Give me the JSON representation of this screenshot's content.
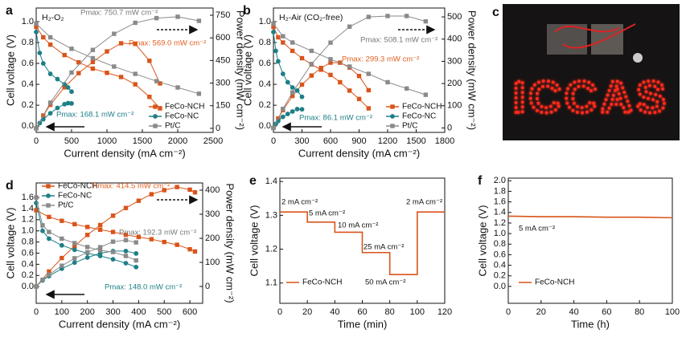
{
  "chart_data": [
    {
      "type": "line",
      "panel_label": "a",
      "title": "H₂-O₂",
      "xlabel": "Current density (mA cm⁻²)",
      "ylabel": "Cell voltage (V)",
      "y2label": "Power density (mW cm⁻²)",
      "xlim": [
        0,
        2500
      ],
      "xticks": [
        0,
        500,
        1000,
        1500,
        2000,
        2500
      ],
      "ylim": [
        -0.06,
        1.13
      ],
      "yticks": [
        {
          "value": 0,
          "label": "0.0"
        },
        0.2,
        0.4,
        0.6,
        0.8,
        {
          "value": 1,
          "label": "1.0"
        }
      ],
      "y2lim": [
        -27,
        798
      ],
      "y2ticks": [
        0,
        150,
        300,
        450,
        600,
        750
      ],
      "legend": "lower right",
      "annotations": [
        {
          "text": "Pmax: 750.7 mW cm⁻²",
          "color": "#777777"
        },
        {
          "text": "Pmax: 569.0 mW cm⁻²",
          "color": "#e0601e"
        },
        {
          "text": "Pmax: 168.1 mW cm⁻²",
          "color": "#1e7f86"
        }
      ],
      "series": [
        {
          "name": "FeCo-NCH",
          "color": "#d9541a",
          "marker": "square",
          "x": [
            0,
            100,
            200,
            400,
            600,
            800,
            1000,
            1200,
            1400,
            1600,
            1750
          ],
          "values": [
            0.95,
            0.85,
            0.78,
            0.68,
            0.61,
            0.55,
            0.51,
            0.47,
            0.4,
            0.28,
            0.17
          ],
          "power": [
            0,
            85,
            156,
            272,
            366,
            440,
            510,
            564,
            560,
            448,
            298
          ]
        },
        {
          "name": "FeCo-NC",
          "color": "#1e7f86",
          "marker": "circle",
          "x": [
            0,
            50,
            100,
            200,
            300,
            400,
            450,
            500
          ],
          "values": [
            0.9,
            0.7,
            0.6,
            0.5,
            0.45,
            0.4,
            0.37,
            0.33
          ],
          "power": [
            0,
            35,
            60,
            100,
            135,
            160,
            167,
            165
          ]
        },
        {
          "name": "Pt/C",
          "color": "#8a8a8a",
          "marker": "square",
          "x": [
            0,
            200,
            500,
            800,
            1100,
            1400,
            1700,
            2000,
            2300
          ],
          "values": [
            0.98,
            0.85,
            0.74,
            0.65,
            0.57,
            0.5,
            0.43,
            0.37,
            0.31
          ],
          "power": [
            0,
            170,
            370,
            520,
            627,
            700,
            731,
            740,
            713
          ]
        }
      ]
    },
    {
      "type": "line",
      "panel_label": "b",
      "title": "H₂-Air (CO₂-free)",
      "xlabel": "Current density (mA cm⁻²)",
      "ylabel": "Cell voltage (V)",
      "y2label": "Power density (mW cm⁻²)",
      "xlim": [
        0,
        1800
      ],
      "xticks": [
        0,
        300,
        600,
        900,
        1200,
        1500,
        1800
      ],
      "ylim": [
        -0.06,
        1.13
      ],
      "yticks": [
        {
          "value": 0,
          "label": "0.0"
        },
        0.2,
        0.4,
        0.6,
        0.8,
        {
          "value": 1,
          "label": "1.0"
        }
      ],
      "y2lim": [
        -20,
        540
      ],
      "y2ticks": [
        0,
        100,
        200,
        300,
        400,
        500
      ],
      "legend": "lower right",
      "annotations": [
        {
          "text": "Pmax: 508.1 mW cm⁻²",
          "color": "#777777"
        },
        {
          "text": "Pmax: 299.3 mW cm⁻²",
          "color": "#e0601e"
        },
        {
          "text": "Pmax: 86.1 mW cm⁻²",
          "color": "#1e7f86"
        }
      ],
      "series": [
        {
          "name": "FeCo-NCH",
          "color": "#d9541a",
          "marker": "square",
          "x": [
            0,
            50,
            100,
            200,
            300,
            400,
            500,
            600,
            700,
            800,
            900,
            1000
          ],
          "values": [
            0.95,
            0.85,
            0.8,
            0.72,
            0.65,
            0.59,
            0.54,
            0.49,
            0.42,
            0.34,
            0.26,
            0.17
          ],
          "power": [
            0,
            43,
            80,
            144,
            195,
            236,
            270,
            294,
            294,
            272,
            234,
            170
          ]
        },
        {
          "name": "FeCo-NC",
          "color": "#1e7f86",
          "marker": "circle",
          "x": [
            0,
            25,
            50,
            100,
            150,
            200,
            250,
            300
          ],
          "values": [
            0.9,
            0.72,
            0.62,
            0.5,
            0.42,
            0.37,
            0.34,
            0.28
          ],
          "power": [
            0,
            18,
            31,
            50,
            63,
            74,
            85,
            84
          ]
        },
        {
          "name": "Pt/C",
          "color": "#8a8a8a",
          "marker": "square",
          "x": [
            0,
            100,
            200,
            400,
            600,
            800,
            1000,
            1200,
            1400,
            1600
          ],
          "values": [
            0.98,
            0.86,
            0.8,
            0.72,
            0.64,
            0.57,
            0.5,
            0.42,
            0.36,
            0.3
          ],
          "power": [
            0,
            86,
            160,
            288,
            384,
            456,
            500,
            504,
            504,
            480
          ]
        }
      ]
    },
    {
      "type": "line",
      "panel_label": "d",
      "xlabel": "Current density (mA cm⁻²)",
      "ylabel": "Cell voltage (V)",
      "y2label": "Power density (mW cm⁻²)",
      "xlim": [
        0,
        650
      ],
      "xticks": [
        0,
        100,
        200,
        300,
        400,
        500,
        600
      ],
      "ylim": [
        -0.3,
        1.86
      ],
      "yticks": [
        {
          "value": 0,
          "label": "0.0"
        },
        0.2,
        0.4,
        0.6,
        0.8,
        {
          "value": 1,
          "label": "1.0"
        },
        1.2,
        1.4,
        1.6
      ],
      "y2lim": [
        -70,
        430
      ],
      "y2ticks": [
        0,
        100,
        200,
        300,
        400
      ],
      "legend": "upper left",
      "annotations": [
        {
          "text": "Pmax: 414.5 mW cm⁻²",
          "color": "#e0601e"
        },
        {
          "text": "Pmax: 192.3 mW cm⁻²",
          "color": "#777777"
        },
        {
          "text": "Pmax: 148.0 mW cm⁻²",
          "color": "#1e7f86"
        }
      ],
      "series": [
        {
          "name": "FeCo-NCH",
          "color": "#d9541a",
          "marker": "square",
          "x": [
            0,
            50,
            100,
            150,
            200,
            250,
            300,
            350,
            400,
            450,
            500,
            550,
            600,
            620
          ],
          "values": [
            1.37,
            1.25,
            1.18,
            1.12,
            1.07,
            1.02,
            0.98,
            0.93,
            0.89,
            0.85,
            0.8,
            0.75,
            0.67,
            0.63
          ],
          "power": [
            0,
            62,
            118,
            168,
            214,
            255,
            294,
            326,
            356,
            383,
            400,
            413,
            402,
            391
          ]
        },
        {
          "name": "FeCo-NC",
          "color": "#1e7f86",
          "marker": "circle",
          "x": [
            0,
            25,
            50,
            100,
            150,
            200,
            250,
            300,
            350,
            390
          ],
          "values": [
            1.5,
            1.0,
            0.86,
            0.74,
            0.66,
            0.6,
            0.55,
            0.49,
            0.42,
            0.35
          ],
          "power": [
            0,
            25,
            43,
            74,
            99,
            120,
            138,
            147,
            147,
            137
          ]
        },
        {
          "name": "Pt/C",
          "color": "#8a8a8a",
          "marker": "square",
          "x": [
            0,
            25,
            50,
            100,
            150,
            200,
            250,
            300,
            350,
            390
          ],
          "values": [
            1.6,
            1.1,
            0.98,
            0.86,
            0.78,
            0.71,
            0.65,
            0.62,
            0.55,
            0.47
          ],
          "power": [
            0,
            28,
            49,
            86,
            117,
            142,
            163,
            186,
            192.5,
            183
          ]
        }
      ]
    },
    {
      "type": "line",
      "panel_label": "e",
      "xlabel": "Time (min)",
      "ylabel": "Cell voltage (V)",
      "xlim": [
        0,
        120
      ],
      "xticks": [
        0,
        20,
        40,
        60,
        80,
        100,
        120
      ],
      "ylim": [
        1.04,
        1.41
      ],
      "yticks": [
        1.1,
        1.2,
        1.3,
        1.4
      ],
      "legend": "lower left",
      "annotations": [
        {
          "text": "2 mA cm⁻²",
          "color": "#111111"
        },
        {
          "text": "5 mA cm⁻²",
          "color": "#111111"
        },
        {
          "text": "10 mA cm⁻²",
          "color": "#111111"
        },
        {
          "text": "25 mA cm⁻²",
          "color": "#111111"
        },
        {
          "text": "50 mA cm⁻²",
          "color": "#111111"
        },
        {
          "text": "2 mA cm⁻²",
          "color": "#111111"
        }
      ],
      "series": [
        {
          "name": "FeCo-NCH",
          "color": "#d9541a",
          "x": [
            0,
            20,
            20,
            40,
            40,
            60,
            60,
            80,
            80,
            100,
            100,
            120
          ],
          "values": [
            1.31,
            1.31,
            1.28,
            1.28,
            1.25,
            1.25,
            1.19,
            1.19,
            1.125,
            1.125,
            1.31,
            1.31
          ]
        }
      ]
    },
    {
      "type": "line",
      "panel_label": "f",
      "xlabel": "Time (h)",
      "ylabel": "Cell voltage (V)",
      "xlim": [
        0,
        100
      ],
      "xticks": [
        0,
        20,
        40,
        60,
        80,
        100
      ],
      "ylim": [
        -0.32,
        2.05
      ],
      "yticks": [
        {
          "value": 0,
          "label": "0.0"
        },
        0.2,
        0.4,
        0.6,
        0.8,
        {
          "value": 1,
          "label": "1.0"
        },
        1.2,
        1.4,
        1.6,
        1.8,
        {
          "value": 2,
          "label": "2.0"
        }
      ],
      "legend": "lower left",
      "annotations": [
        {
          "text": "5 mA cm⁻²",
          "color": "#111111"
        }
      ],
      "series": [
        {
          "name": "FeCo-NCH",
          "color": "#d9541a",
          "x": [
            0,
            20,
            40,
            60,
            80,
            100
          ],
          "values": [
            1.33,
            1.32,
            1.32,
            1.31,
            1.31,
            1.3
          ]
        }
      ]
    }
  ],
  "photo": {
    "panel_label": "c",
    "sign_text": "ICCAS"
  }
}
